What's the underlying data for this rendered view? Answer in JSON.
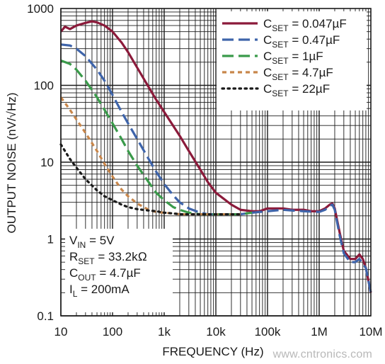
{
  "chart_data": {
    "type": "line",
    "title": "",
    "xlabel": "FREQUENCY (Hz)",
    "ylabel": "OUTPUT NOISE (nV/√Hz)",
    "xscale": "log",
    "yscale": "log",
    "xlim": [
      10,
      10000000
    ],
    "ylim": [
      0.1,
      1000
    ],
    "grid": true,
    "x_tick_labels": [
      "10",
      "100",
      "1k",
      "10k",
      "100k",
      "1M",
      "10M"
    ],
    "y_tick_labels": [
      "0.1",
      "1",
      "10",
      "100",
      "1000"
    ],
    "legend_position": "top-right",
    "annotation_lines": [
      {
        "main": "V",
        "sub": "IN",
        "rest": " = 5V"
      },
      {
        "main": "R",
        "sub": "SET",
        "rest": " = 33.2kΩ"
      },
      {
        "main": "C",
        "sub": "OUT",
        "rest": " = 4.7µF"
      },
      {
        "main": "I",
        "sub": "L",
        "rest": " = 200mA"
      }
    ],
    "series": [
      {
        "label_main": "C",
        "label_sub": "SET",
        "label_rest": " = 0.047µF",
        "color": "#8b1a3a",
        "style": "solid",
        "x": [
          10,
          12,
          15,
          20,
          30,
          40,
          50,
          70,
          100,
          150,
          200,
          300,
          500,
          700,
          1000,
          2000,
          3000,
          5000,
          7000,
          10000,
          20000,
          30000,
          50000,
          70000,
          100000,
          200000,
          300000,
          500000,
          700000,
          1000000,
          1300000,
          1600000,
          1800000,
          2000000,
          2500000,
          3000000,
          4000000,
          5000000,
          6000000,
          7000000,
          8000000,
          10000000
        ],
        "y": [
          500,
          580,
          540,
          600,
          650,
          680,
          660,
          600,
          500,
          360,
          270,
          170,
          95,
          65,
          45,
          22,
          14,
          8,
          5.5,
          4,
          2.8,
          2.4,
          2.3,
          2.3,
          2.5,
          2.5,
          2.4,
          2.4,
          2.3,
          2.3,
          2.5,
          2.8,
          2.9,
          2.5,
          1.2,
          0.7,
          0.55,
          0.55,
          0.63,
          0.55,
          0.42,
          0.2
        ]
      },
      {
        "label_main": "C",
        "label_sub": "SET",
        "label_rest": " = 0.47µF",
        "color": "#3e64aa",
        "style": "dashed",
        "x": [
          10,
          15,
          20,
          30,
          50,
          70,
          100,
          150,
          200,
          300,
          500,
          700,
          1000,
          1500,
          2000,
          3000,
          5000,
          7000,
          10000,
          20000,
          30000,
          50000,
          70000,
          100000,
          200000,
          300000,
          500000,
          1000000,
          1300000,
          1600000,
          1800000,
          2000000,
          2500000,
          3000000,
          4000000,
          5000000,
          6000000,
          8000000,
          10000000
        ],
        "y": [
          340,
          330,
          300,
          240,
          160,
          115,
          75,
          45,
          32,
          20,
          11,
          7.5,
          5.2,
          3.7,
          3.0,
          2.5,
          2.2,
          2.1,
          2.1,
          2.1,
          2.1,
          2.2,
          2.25,
          2.3,
          2.4,
          2.35,
          2.3,
          2.25,
          2.4,
          2.7,
          2.8,
          2.4,
          1.1,
          0.65,
          0.5,
          0.5,
          0.55,
          0.42,
          0.2
        ]
      },
      {
        "label_main": "C",
        "label_sub": "SET",
        "label_rest": " = 1µF",
        "color": "#3a9a4a",
        "style": "dashed",
        "x": [
          10,
          15,
          20,
          30,
          50,
          70,
          100,
          150,
          200,
          300,
          500,
          700,
          1000,
          1500,
          2000,
          3000,
          5000,
          7000,
          10000,
          20000,
          30000,
          50000
        ],
        "y": [
          210,
          190,
          160,
          115,
          70,
          48,
          32,
          20,
          14,
          9,
          5.5,
          4.0,
          3.2,
          2.6,
          2.4,
          2.2,
          2.1,
          2.1,
          2.1,
          2.1,
          2.1,
          2.2
        ]
      },
      {
        "label_main": "C",
        "label_sub": "SET",
        "label_rest": " = 4.7µF",
        "color": "#c8864a",
        "style": "dashed-short",
        "x": [
          10,
          15,
          20,
          30,
          50,
          70,
          100,
          150,
          200,
          300,
          500,
          700,
          1000,
          1500,
          2000,
          3000,
          5000,
          10000,
          20000,
          30000
        ],
        "y": [
          70,
          48,
          36,
          24,
          14,
          9.5,
          6.5,
          4.4,
          3.6,
          2.9,
          2.4,
          2.25,
          2.2,
          2.15,
          2.1,
          2.1,
          2.1,
          2.1,
          2.1,
          2.1
        ]
      },
      {
        "label_main": "C",
        "label_sub": "SET",
        "label_rest": " = 22µF",
        "color": "#1a1a1a",
        "style": "dotted",
        "x": [
          10,
          15,
          20,
          30,
          50,
          70,
          100,
          150,
          200,
          300,
          500,
          700,
          1000,
          1500,
          2000,
          3000,
          5000,
          10000,
          20000,
          30000
        ],
        "y": [
          17,
          11,
          8.5,
          6.0,
          4.3,
          3.6,
          3.2,
          2.8,
          2.6,
          2.45,
          2.35,
          2.3,
          2.2,
          2.15,
          2.1,
          2.1,
          2.1,
          2.1,
          2.1,
          2.1
        ]
      }
    ]
  },
  "watermark": "www.cntronics.com"
}
